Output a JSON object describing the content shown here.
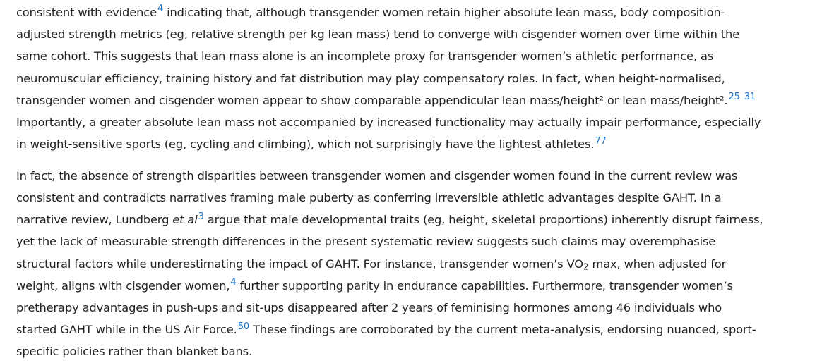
{
  "paragraph1": {
    "l1": {
      "a": "consistent with evidence",
      "ref1": "4",
      "b": " indicating that, although transgender women retain higher absolute lean mass, body composition-"
    },
    "l2": "adjusted strength metrics (eg, relative strength per kg lean mass) tend to converge with cisgender women over time within the",
    "l3": "same cohort. This suggests that lean mass alone is an incomplete proxy for transgender women’s athletic performance, as",
    "l4": "neuromuscular efficiency, training history and fat distribution may play compensatory roles. In fact, when height-normalised,",
    "l5": {
      "a": "transgender women and cisgender women appear to show comparable appendicular lean mass/height² or lean mass/height².",
      "ref1": "25",
      "ref2": "31"
    },
    "l6": "Importantly, a greater absolute lean mass not accompanied by increased functionality may actually impair performance, especially",
    "l7": {
      "a": "in weight-sensitive sports (eg, cycling and climbing), which not surprisingly have the lightest athletes.",
      "ref1": "77"
    }
  },
  "paragraph2": {
    "l1": "In fact, the absence of strength disparities between transgender women and cisgender women found in the current review was",
    "l2": "consistent and contradicts narratives framing male puberty as conferring irreversible athletic advantages despite GAHT. In a",
    "l3": {
      "a": "narrative review, Lundberg ",
      "em": "et al",
      "ref1": "3",
      "b": " argue that male developmental traits (eg, height, skeletal proportions) inherently disrupt fairness,"
    },
    "l4": "yet the lack of measurable strength differences in the present systematic review suggests such claims may overemphasise",
    "l5": {
      "a": "structural factors while underestimating the impact of GAHT. For instance, transgender women’s VO",
      "sub": "2",
      "b": " max, when adjusted for"
    },
    "l6": {
      "a": "weight, aligns with cisgender women,",
      "ref1": "4",
      "b": " further supporting parity in endurance capabilities. Furthermore, transgender women’s"
    },
    "l7": "pretherapy advantages in push-ups and sit-ups disappeared after 2 years of feminising hormones among 46 individuals who",
    "l8": {
      "a": "started GAHT while in the US Air Force.",
      "ref1": "50",
      "b": " These findings are corroborated by the current meta-analysis, endorsing nuanced, sport-"
    },
    "l9": "specific policies rather than blanket bans."
  },
  "colors": {
    "text": "#222222",
    "link": "#1a73c8",
    "background": "#ffffff"
  }
}
